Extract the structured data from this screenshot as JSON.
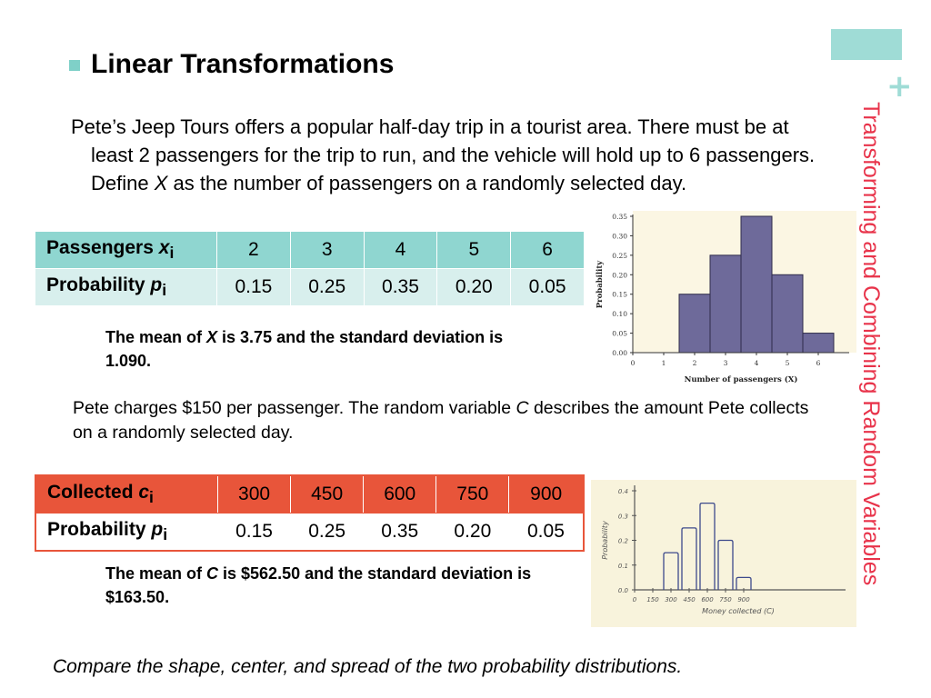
{
  "side_title": "Transforming and Combining Random Variables",
  "heading": "Linear Transformations",
  "intro": {
    "before": "Pete’s Jeep Tours offers a popular half-day trip in a tourist area. There must be at least 2 passengers for the trip to run, and the vehicle will hold up to 6 passengers. Define ",
    "var": "X",
    "after": " as the number of passengers on a randomly selected day."
  },
  "table1": {
    "row1_label": "Passengers ",
    "row1_var": "x",
    "row1_sub": "i",
    "row1_values": [
      "2",
      "3",
      "4",
      "5",
      "6"
    ],
    "row2_label": "Probability ",
    "row2_var": "p",
    "row2_sub": "i",
    "row2_values": [
      "0.15",
      "0.25",
      "0.35",
      "0.20",
      "0.05"
    ]
  },
  "mean1": {
    "before": "The mean of ",
    "var": "X",
    "after": " is 3.75 and the standard deviation is 1.090."
  },
  "charge": {
    "before": "Pete charges $150 per passenger.  The random variable ",
    "var": "C",
    "after": " describes the amount Pete collects on a randomly selected day."
  },
  "table2": {
    "row1_label": "Collected ",
    "row1_var": "c",
    "row1_sub": "i",
    "row1_values": [
      "300",
      "450",
      "600",
      "750",
      "900"
    ],
    "row2_label": "Probability ",
    "row2_var": "p",
    "row2_sub": "i",
    "row2_values": [
      "0.15",
      "0.25",
      "0.35",
      "0.20",
      "0.05"
    ]
  },
  "mean2": {
    "before": "The mean of ",
    "var": "C",
    "after": " is $562.50 and the standard deviation is $163.50."
  },
  "question": "Compare the shape, center, and spread of the two probability distributions.",
  "colors": {
    "accent_teal": "#9fdcd6",
    "side_title_red": "#e8334a",
    "table1_header": "#8fd6d0",
    "table2_header": "#e8553a",
    "bar_fill": "#6e6a9a"
  },
  "chart_data": [
    {
      "type": "bar",
      "x": [
        2,
        3,
        4,
        5,
        6
      ],
      "values": [
        0.15,
        0.25,
        0.35,
        0.2,
        0.05
      ],
      "xlabel": "Number of passengers (X)",
      "ylabel": "Probability",
      "xlim": [
        0,
        7
      ],
      "ylim": [
        0,
        0.35
      ],
      "xticks": [
        "0",
        "1",
        "2",
        "3",
        "4",
        "5",
        "6"
      ],
      "yticks": [
        "0.00",
        "0.05",
        "0.10",
        "0.15",
        "0.20",
        "0.25",
        "0.30",
        "0.35"
      ]
    },
    {
      "type": "bar",
      "x": [
        300,
        450,
        600,
        750,
        900
      ],
      "values": [
        0.15,
        0.25,
        0.35,
        0.2,
        0.05
      ],
      "xlabel": "Money collected (C)",
      "ylabel": "Probability",
      "ylim": [
        0,
        0.4
      ],
      "xticks": [
        "0",
        "150",
        "300",
        "450",
        "600",
        "750",
        "900"
      ],
      "yticks": [
        "0.0",
        "0.1",
        "0.2",
        "0.3",
        "0.4"
      ]
    }
  ]
}
